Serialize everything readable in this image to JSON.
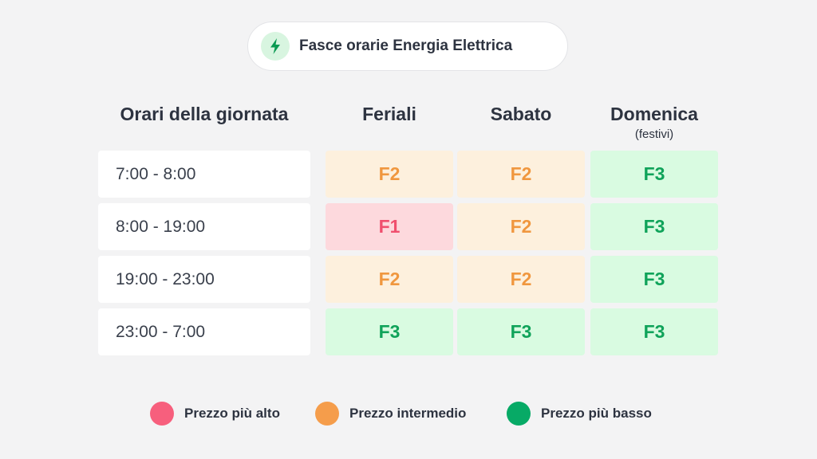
{
  "title": {
    "text": "Fasce orarie Energia Elettrica",
    "icon": "lightning-bolt-icon"
  },
  "columns": {
    "times": "Orari della giornata",
    "weekdays": "Feriali",
    "saturday": "Sabato",
    "sunday": "Domenica",
    "sunday_note": "(festivi)"
  },
  "rows": [
    {
      "time": "7:00 - 8:00",
      "weekdays": "F2",
      "saturday": "F2",
      "sunday": "F3"
    },
    {
      "time": "8:00 - 19:00",
      "weekdays": "F1",
      "saturday": "F2",
      "sunday": "F3"
    },
    {
      "time": "19:00 - 23:00",
      "weekdays": "F2",
      "saturday": "F2",
      "sunday": "F3"
    },
    {
      "time": "23:00 - 7:00",
      "weekdays": "F3",
      "saturday": "F3",
      "sunday": "F3"
    }
  ],
  "band_colors": {
    "F1": {
      "bg": "#fdd9dd",
      "text": "#f0506e"
    },
    "F2": {
      "bg": "#fdf0dd",
      "text": "#f0973f"
    },
    "F3": {
      "bg": "#d9fbe1",
      "text": "#10a35a"
    }
  },
  "legend": [
    {
      "label": "Prezzo più alto",
      "color": "#f75f7d"
    },
    {
      "label": "Prezzo intermedio",
      "color": "#f59d4b"
    },
    {
      "label": "Prezzo più basso",
      "color": "#07aa66"
    }
  ]
}
